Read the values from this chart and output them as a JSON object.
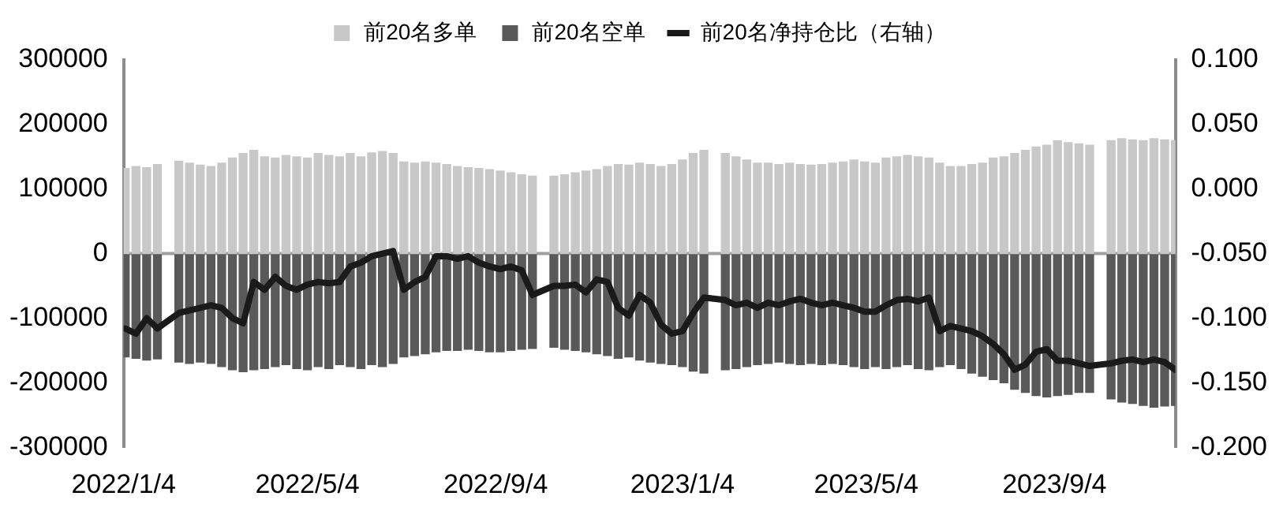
{
  "chart_data": {
    "type": "bar",
    "legend": "top",
    "stacked": true,
    "x": [
      "2022-01-05",
      "2022-01-12",
      "2022-01-19",
      "2022-01-26",
      "2022-02-09",
      "2022-02-16",
      "2022-02-23",
      "2022-03-02",
      "2022-03-09",
      "2022-03-16",
      "2022-03-23",
      "2022-03-30",
      "2022-04-06",
      "2022-04-13",
      "2022-04-20",
      "2022-04-27",
      "2022-05-04",
      "2022-05-11",
      "2022-05-18",
      "2022-05-25",
      "2022-06-01",
      "2022-06-08",
      "2022-06-15",
      "2022-06-22",
      "2022-06-29",
      "2022-07-06",
      "2022-07-13",
      "2022-07-20",
      "2022-07-27",
      "2022-08-03",
      "2022-08-10",
      "2022-08-17",
      "2022-08-24",
      "2022-08-31",
      "2022-09-07",
      "2022-09-14",
      "2022-09-21",
      "2022-09-28",
      "2022-10-12",
      "2022-10-19",
      "2022-10-26",
      "2022-11-02",
      "2022-11-09",
      "2022-11-16",
      "2022-11-23",
      "2022-11-30",
      "2022-12-07",
      "2022-12-14",
      "2022-12-21",
      "2022-12-28",
      "2023-01-04",
      "2023-01-11",
      "2023-01-18",
      "2023-02-01",
      "2023-02-08",
      "2023-02-15",
      "2023-02-22",
      "2023-03-01",
      "2023-03-08",
      "2023-03-15",
      "2023-03-22",
      "2023-03-29",
      "2023-04-05",
      "2023-04-12",
      "2023-04-19",
      "2023-04-26",
      "2023-05-03",
      "2023-05-10",
      "2023-05-17",
      "2023-05-24",
      "2023-05-31",
      "2023-06-07",
      "2023-06-14",
      "2023-06-21",
      "2023-06-28",
      "2023-07-05",
      "2023-07-12",
      "2023-07-19",
      "2023-07-26",
      "2023-08-02",
      "2023-08-09",
      "2023-08-16",
      "2023-08-23",
      "2023-08-30",
      "2023-09-06",
      "2023-09-13",
      "2023-09-20",
      "2023-09-27",
      "2023-10-11",
      "2023-10-18",
      "2023-10-25",
      "2023-11-01",
      "2023-11-08",
      "2023-11-15",
      "2023-11-22"
    ],
    "series": [
      {
        "name": "前20名多单",
        "color": "#c8c8c8",
        "values": [
          132000,
          135000,
          133000,
          138000,
          143000,
          140000,
          137000,
          135000,
          140000,
          148000,
          155000,
          160000,
          150000,
          148000,
          152000,
          150000,
          148000,
          155000,
          152000,
          150000,
          155000,
          150000,
          156000,
          158000,
          155000,
          142000,
          140000,
          142000,
          140000,
          138000,
          135000,
          133000,
          132000,
          130000,
          128000,
          125000,
          122000,
          120000,
          120000,
          122000,
          125000,
          128000,
          130000,
          135000,
          138000,
          137000,
          140000,
          138000,
          135000,
          138000,
          145000,
          155000,
          160000,
          155000,
          150000,
          145000,
          140000,
          140000,
          138000,
          140000,
          138000,
          137000,
          138000,
          140000,
          142000,
          145000,
          142000,
          140000,
          148000,
          150000,
          152000,
          150000,
          148000,
          140000,
          135000,
          135000,
          138000,
          140000,
          148000,
          150000,
          155000,
          160000,
          165000,
          168000,
          175000,
          172000,
          170000,
          168000,
          175000,
          178000,
          176000,
          175000,
          178000,
          176000,
          175000
        ]
      },
      {
        "name": "前20名空单",
        "color": "#595959",
        "values": [
          -160000,
          -162000,
          -165000,
          -163000,
          -168000,
          -170000,
          -168000,
          -170000,
          -175000,
          -180000,
          -183000,
          -180000,
          -178000,
          -175000,
          -172000,
          -178000,
          -180000,
          -175000,
          -178000,
          -172000,
          -175000,
          -178000,
          -172000,
          -175000,
          -170000,
          -160000,
          -158000,
          -155000,
          -152000,
          -150000,
          -150000,
          -148000,
          -150000,
          -152000,
          -152000,
          -150000,
          -148000,
          -147000,
          -145000,
          -148000,
          -150000,
          -152000,
          -155000,
          -158000,
          -162000,
          -160000,
          -165000,
          -168000,
          -170000,
          -172000,
          -175000,
          -182000,
          -185000,
          -180000,
          -178000,
          -175000,
          -172000,
          -170000,
          -168000,
          -170000,
          -172000,
          -170000,
          -172000,
          -170000,
          -172000,
          -175000,
          -178000,
          -175000,
          -178000,
          -175000,
          -172000,
          -178000,
          -180000,
          -175000,
          -172000,
          -178000,
          -185000,
          -190000,
          -195000,
          -200000,
          -210000,
          -215000,
          -220000,
          -222000,
          -220000,
          -218000,
          -215000,
          -215000,
          -225000,
          -230000,
          -232000,
          -235000,
          -238000,
          -236000,
          -235000
        ]
      },
      {
        "name": "前20名净持仓比（右轴）",
        "type": "line",
        "axis": "y2",
        "color": "#1a1a1a",
        "values": [
          -0.108,
          -0.112,
          -0.1,
          -0.108,
          -0.096,
          -0.094,
          -0.092,
          -0.09,
          -0.092,
          -0.1,
          -0.104,
          -0.072,
          -0.078,
          -0.068,
          -0.075,
          -0.078,
          -0.074,
          -0.072,
          -0.073,
          -0.072,
          -0.06,
          -0.057,
          -0.052,
          -0.05,
          -0.048,
          -0.078,
          -0.072,
          -0.068,
          -0.052,
          -0.052,
          -0.054,
          -0.052,
          -0.057,
          -0.06,
          -0.062,
          -0.06,
          -0.063,
          -0.082,
          -0.075,
          -0.075,
          -0.074,
          -0.08,
          -0.07,
          -0.072,
          -0.092,
          -0.098,
          -0.082,
          -0.088,
          -0.105,
          -0.112,
          -0.11,
          -0.096,
          -0.084,
          -0.086,
          -0.09,
          -0.088,
          -0.092,
          -0.088,
          -0.09,
          -0.087,
          -0.085,
          -0.088,
          -0.09,
          -0.088,
          -0.09,
          -0.092,
          -0.095,
          -0.095,
          -0.09,
          -0.086,
          -0.085,
          -0.087,
          -0.084,
          -0.11,
          -0.106,
          -0.108,
          -0.11,
          -0.114,
          -0.12,
          -0.128,
          -0.14,
          -0.136,
          -0.126,
          -0.124,
          -0.133,
          -0.133,
          -0.135,
          -0.137,
          -0.135,
          -0.133,
          -0.132,
          -0.134,
          -0.132,
          -0.134,
          -0.14
        ]
      }
    ],
    "xlim": [
      "2022-01-04",
      "2023-11-22"
    ],
    "xticks": [
      {
        "value": "2022-01-04",
        "label": "2022/1/4"
      },
      {
        "value": "2022-05-04",
        "label": "2022/5/4"
      },
      {
        "value": "2022-09-04",
        "label": "2022/9/4"
      },
      {
        "value": "2023-01-04",
        "label": "2023/1/4"
      },
      {
        "value": "2023-05-04",
        "label": "2023/5/4"
      },
      {
        "value": "2023-09-04",
        "label": "2023/9/4"
      }
    ],
    "ylim": [
      -300000,
      300000
    ],
    "yticks": [
      -300000,
      -200000,
      -100000,
      0,
      100000,
      200000,
      300000
    ],
    "y2lim": [
      -0.2,
      0.1
    ],
    "y2ticks": [
      {
        "value": -0.2,
        "label": "-0.200"
      },
      {
        "value": -0.15,
        "label": "-0.150"
      },
      {
        "value": -0.1,
        "label": "-0.100"
      },
      {
        "value": -0.05,
        "label": "-0.050"
      },
      {
        "value": 0,
        "label": "0.000"
      },
      {
        "value": 0.05,
        "label": "0.050"
      },
      {
        "value": 0.1,
        "label": "0.100"
      }
    ],
    "ref_lines": [
      {
        "axis": "y",
        "value": 0,
        "color": "#a0a0a0"
      }
    ]
  }
}
